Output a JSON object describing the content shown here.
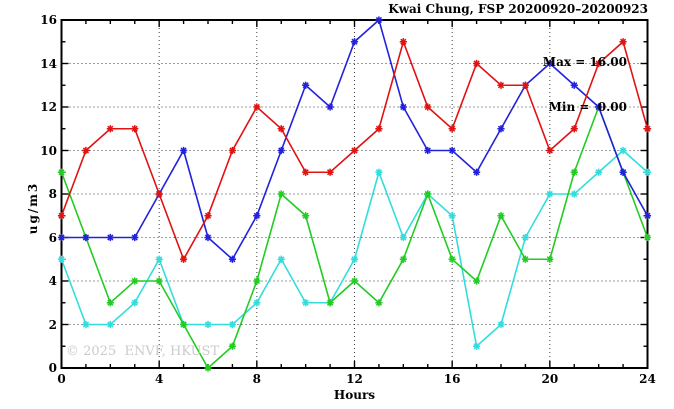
{
  "watermark": "© 2025  ENVF, HKUST",
  "annotations": {
    "max_line": "Max = 16.00",
    "min_line": "Min =  0.00"
  },
  "chart_data": {
    "type": "line",
    "title": "Kwai Chung, FSP 20200920–20200923",
    "xlabel": "Hours",
    "ylabel": "ug/m3",
    "xlim": [
      0,
      24
    ],
    "ylim": [
      0,
      16
    ],
    "xticks": [
      0,
      4,
      8,
      12,
      16,
      20,
      24
    ],
    "yticks": [
      0,
      2,
      4,
      6,
      8,
      10,
      12,
      14,
      16
    ],
    "grid": true,
    "legend_position": "none",
    "marker": "asterisk",
    "stats": {
      "max": 16.0,
      "min": 0.0
    },
    "x": [
      0,
      1,
      2,
      3,
      4,
      5,
      6,
      7,
      8,
      9,
      10,
      11,
      12,
      13,
      14,
      15,
      16,
      17,
      18,
      19,
      20,
      21,
      22,
      23,
      24
    ],
    "series": [
      {
        "name": "series-red",
        "color": "#e11212",
        "values": [
          7,
          10,
          11,
          11,
          8,
          5,
          7,
          10,
          12,
          11,
          9,
          9,
          10,
          11,
          15,
          12,
          11,
          14,
          13,
          13,
          10,
          11,
          14,
          15,
          11
        ]
      },
      {
        "name": "series-blue",
        "color": "#2222dd",
        "values": [
          6,
          6,
          6,
          6,
          8,
          10,
          6,
          5,
          7,
          10,
          13,
          12,
          15,
          16,
          12,
          10,
          10,
          9,
          11,
          13,
          14,
          13,
          12,
          9,
          7
        ]
      },
      {
        "name": "series-green",
        "color": "#22cc22",
        "values": [
          9,
          6,
          3,
          4,
          4,
          2,
          0,
          1,
          4,
          8,
          7,
          3,
          4,
          3,
          5,
          8,
          5,
          4,
          7,
          5,
          5,
          9,
          12,
          9,
          6
        ]
      },
      {
        "name": "series-cyan",
        "color": "#33dddd",
        "values": [
          5,
          2,
          2,
          3,
          5,
          2,
          2,
          2,
          3,
          5,
          3,
          3,
          5,
          9,
          6,
          8,
          7,
          1,
          2,
          6,
          8,
          8,
          9,
          10,
          9
        ]
      }
    ]
  }
}
